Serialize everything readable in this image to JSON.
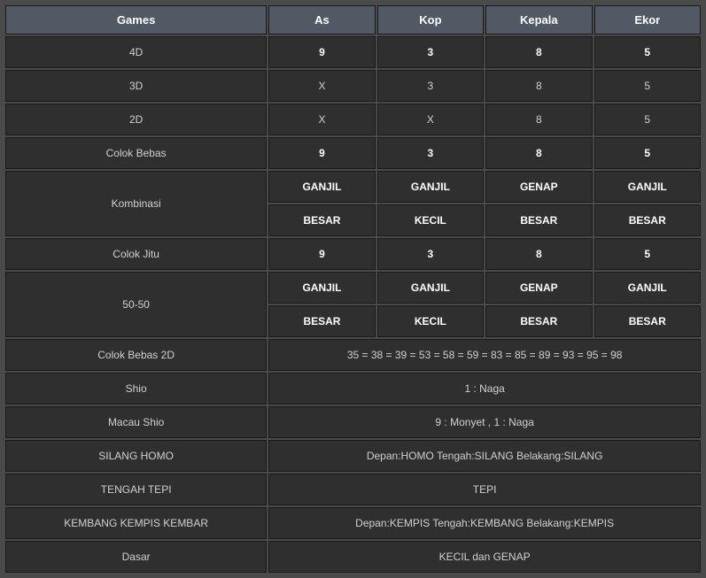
{
  "table": {
    "headers": [
      "Games",
      "As",
      "Kop",
      "Kepala",
      "Ekor"
    ],
    "rows": [
      {
        "type": "five",
        "label": "4D",
        "cells": [
          "9",
          "3",
          "8",
          "5"
        ],
        "bold": true
      },
      {
        "type": "five",
        "label": "3D",
        "cells": [
          "X",
          "3",
          "8",
          "5"
        ],
        "bold": false
      },
      {
        "type": "five",
        "label": "2D",
        "cells": [
          "X",
          "X",
          "8",
          "5"
        ],
        "bold": false
      },
      {
        "type": "five",
        "label": "Colok Bebas",
        "cells": [
          "9",
          "3",
          "8",
          "5"
        ],
        "bold": true
      },
      {
        "type": "five-rowspan2",
        "label": "Kombinasi",
        "cells1": [
          "GANJIL",
          "GANJIL",
          "GENAP",
          "GANJIL"
        ],
        "cells2": [
          "BESAR",
          "KECIL",
          "BESAR",
          "BESAR"
        ],
        "bold": true
      },
      {
        "type": "five",
        "label": "Colok Jitu",
        "cells": [
          "9",
          "3",
          "8",
          "5"
        ],
        "bold": true
      },
      {
        "type": "five-rowspan2",
        "label": "50-50",
        "cells1": [
          "GANJIL",
          "GANJIL",
          "GENAP",
          "GANJIL"
        ],
        "cells2": [
          "BESAR",
          "KECIL",
          "BESAR",
          "BESAR"
        ],
        "bold": true
      },
      {
        "type": "two",
        "label": "Colok Bebas 2D",
        "value": "35 = 38 = 39 = 53 = 58 = 59 = 83 = 85 = 89 = 93 = 95 = 98"
      },
      {
        "type": "two",
        "label": "Shio",
        "value": "1 : Naga"
      },
      {
        "type": "two",
        "label": "Macau Shio",
        "value": "9 : Monyet , 1 : Naga"
      },
      {
        "type": "two",
        "label": "SILANG HOMO",
        "value": "Depan:HOMO Tengah:SILANG Belakang:SILANG"
      },
      {
        "type": "two",
        "label": "TENGAH TEPI",
        "value": "TEPI"
      },
      {
        "type": "two",
        "label": "KEMBANG KEMPIS KEMBAR",
        "value": "Depan:KEMPIS Tengah:KEMBANG Belakang:KEMPIS"
      },
      {
        "type": "two",
        "label": "Dasar",
        "value": "KECIL dan GENAP"
      }
    ]
  }
}
